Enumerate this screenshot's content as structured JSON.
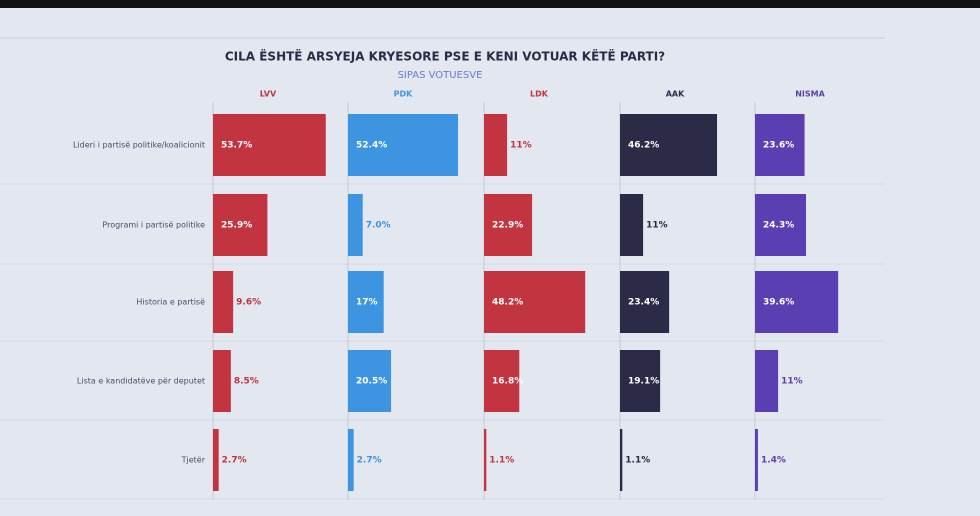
{
  "chart_data": {
    "type": "bar",
    "orientation": "horizontal",
    "title": "CILA ËSHTË ARSYEJA KRYESORE PSE E KENI VOTUAR KËTË PARTI?",
    "subtitle": "SIPAS VOTUESVE",
    "categories": [
      "Lideri i partisë politike/koalicionit",
      "Programi i partisë politike",
      "Historia e partisë",
      "Lista e kandidatëve për deputet",
      "Tjetër"
    ],
    "xlim": [
      0,
      60
    ],
    "series": [
      {
        "name": "LVV",
        "color": "#c2343f",
        "values": [
          53.7,
          25.9,
          9.6,
          8.5,
          2.7
        ],
        "value_labels": [
          "53.7%",
          "25.9%",
          "9.6%",
          "8.5%",
          "2.7%"
        ]
      },
      {
        "name": "PDK",
        "color": "#3d95e2",
        "values": [
          52.4,
          7.0,
          17,
          20.5,
          2.7
        ],
        "value_labels": [
          "52.4%",
          "7.0%",
          "17%",
          "20.5%",
          "2.7%"
        ]
      },
      {
        "name": "LDK",
        "color": "#c2343f",
        "values": [
          11,
          22.9,
          48.2,
          16.8,
          1.1
        ],
        "value_labels": [
          "11%",
          "22.9%",
          "48.2%",
          "16.8%",
          "1.1%"
        ]
      },
      {
        "name": "AAK",
        "color": "#2b2b47",
        "values": [
          46.2,
          11,
          23.4,
          19.1,
          1.1
        ],
        "value_labels": [
          "46.2%",
          "11%",
          "23.4%",
          "19.1%",
          "1.1%"
        ]
      },
      {
        "name": "NISMA",
        "color": "#5a3fb2",
        "values": [
          23.6,
          24.3,
          39.6,
          11,
          1.4
        ],
        "value_labels": [
          "23.6%",
          "24.3%",
          "39.6%",
          "11%",
          "1.4%"
        ]
      }
    ]
  }
}
